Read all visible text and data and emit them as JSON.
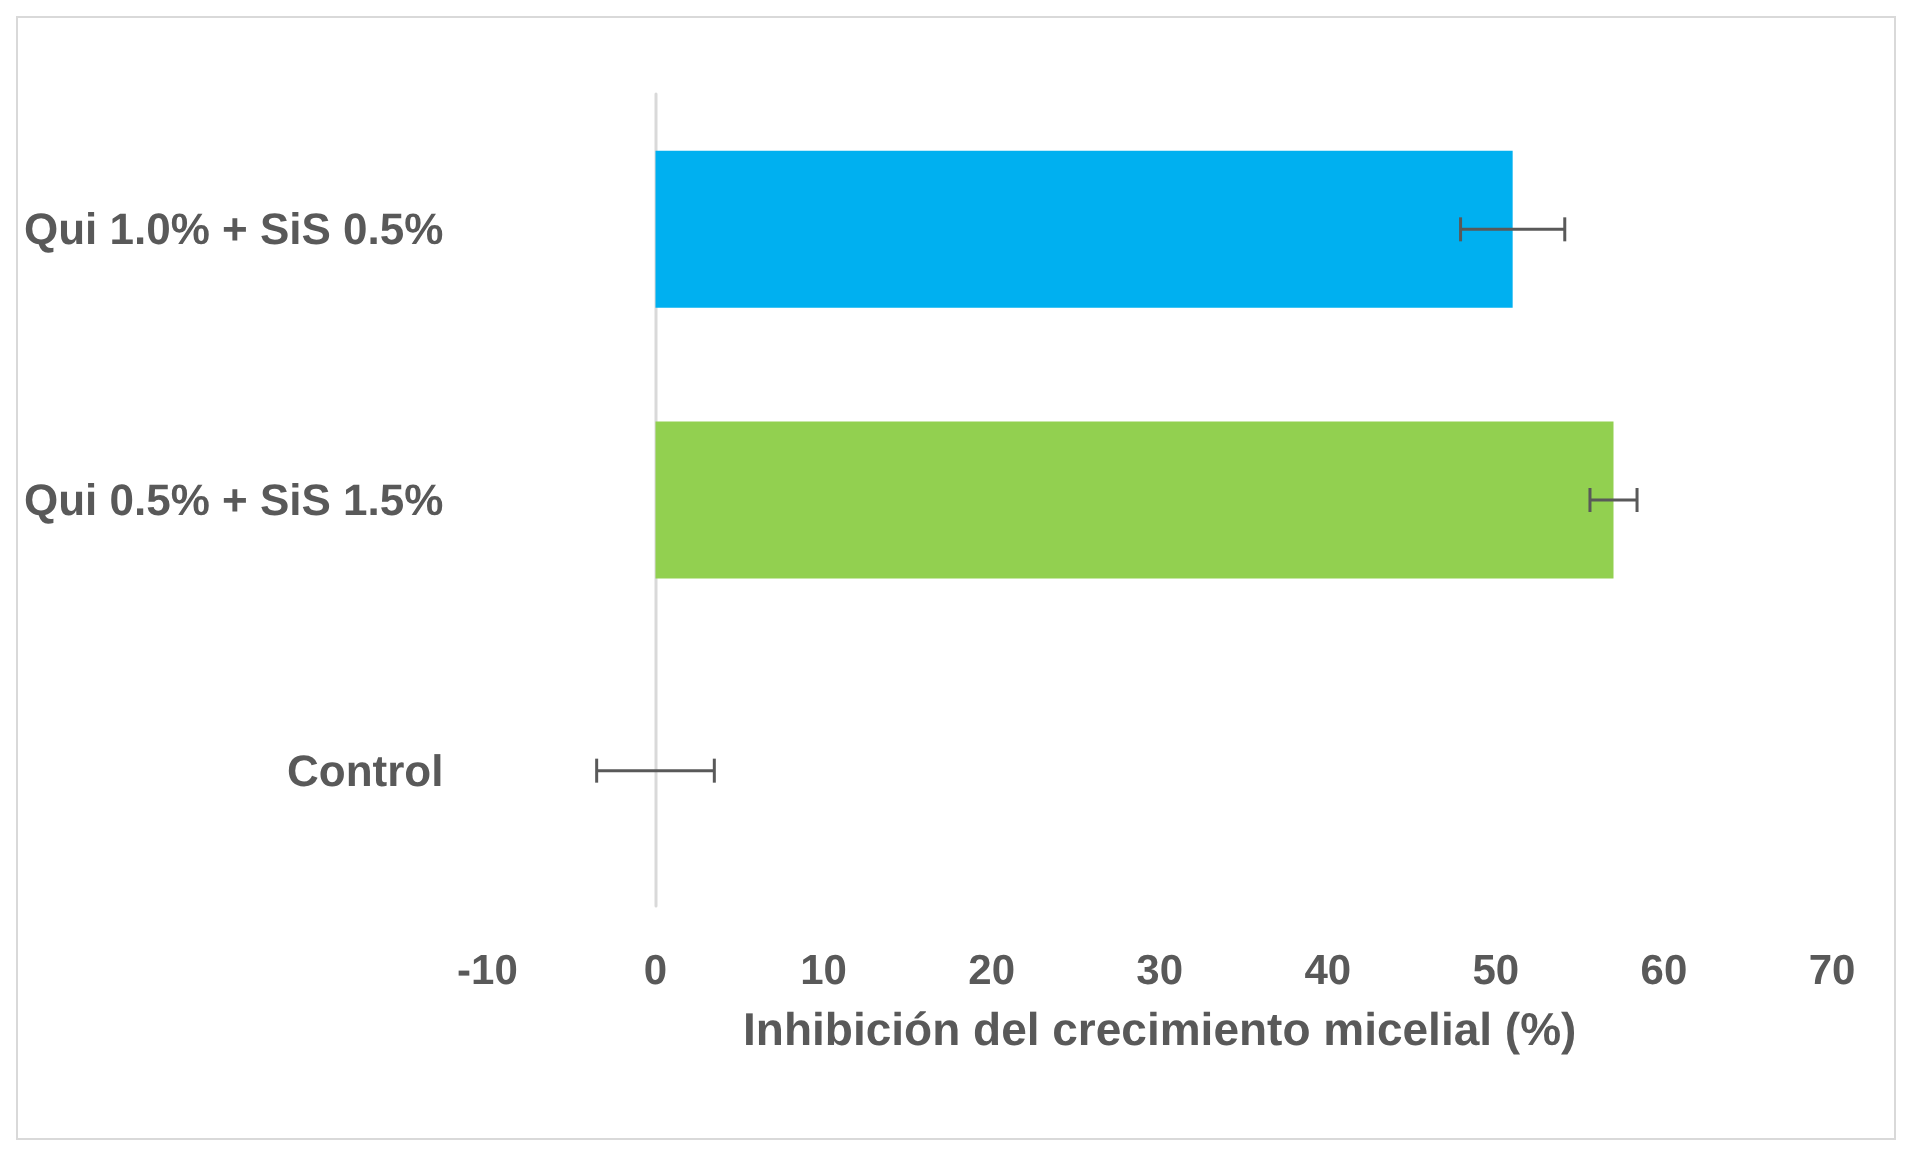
{
  "chart_data": {
    "type": "bar",
    "orientation": "horizontal",
    "xlabel": "Inhibición del crecimiento micelial (%)",
    "categories": [
      "Qui 1.0% + SiS 0.5%",
      "Qui 0.5% + SiS 1.5%",
      "Control"
    ],
    "values": [
      51,
      57,
      0
    ],
    "colors": [
      "#00b0f0",
      "#92d050",
      "#a5a5a5"
    ],
    "errors": [
      3.1,
      1.4,
      3.5
    ],
    "xlim": [
      -10,
      70
    ],
    "xticks": [
      -10,
      0,
      10,
      20,
      30,
      40,
      50,
      60,
      70
    ]
  }
}
